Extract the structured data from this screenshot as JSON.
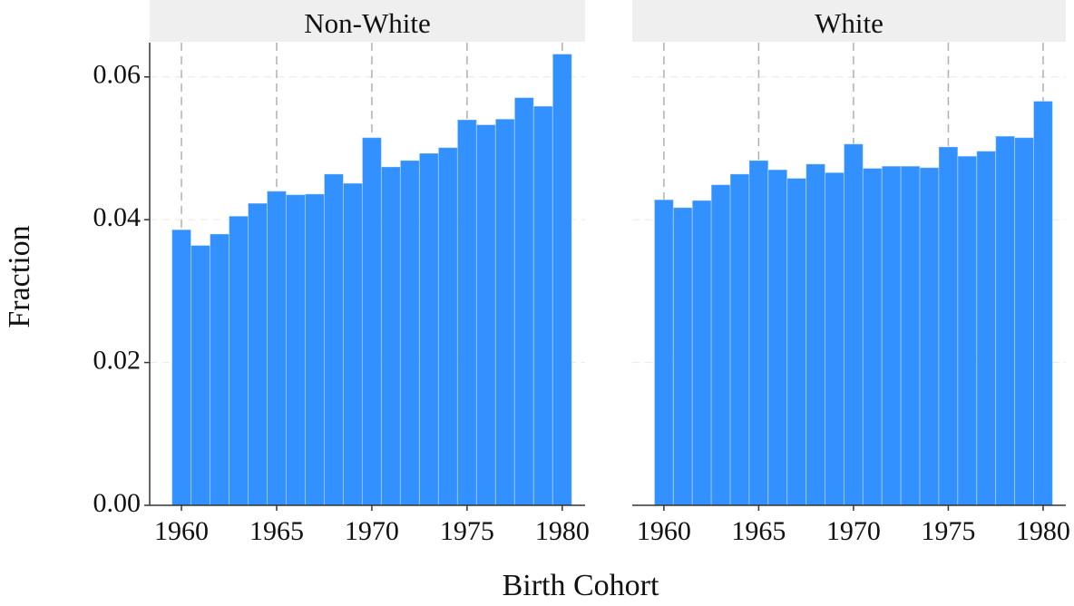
{
  "chart_data": {
    "type": "histogram",
    "xlabel": "Birth Cohort",
    "ylabel": "Fraction",
    "bins": [
      1959.5,
      1960.5,
      1961.5,
      1962.5,
      1963.5,
      1964.5,
      1965.5,
      1966.5,
      1967.5,
      1968.5,
      1969.5,
      1970.5,
      1971.5,
      1972.5,
      1973.5,
      1974.5,
      1975.5,
      1976.5,
      1977.5,
      1978.5,
      1979.5,
      1980.5
    ],
    "facets": [
      {
        "title": "Non-White",
        "values": [
          0.0386,
          0.0364,
          0.038,
          0.0405,
          0.0423,
          0.044,
          0.0435,
          0.0436,
          0.0464,
          0.0451,
          0.0515,
          0.0474,
          0.0483,
          0.0493,
          0.0501,
          0.054,
          0.0533,
          0.0541,
          0.0571,
          0.0559,
          0.0632
        ]
      },
      {
        "title": "White",
        "values": [
          0.0428,
          0.0417,
          0.0427,
          0.0449,
          0.0464,
          0.0483,
          0.047,
          0.0458,
          0.0478,
          0.0466,
          0.0506,
          0.0472,
          0.0475,
          0.0475,
          0.0473,
          0.0502,
          0.0489,
          0.0496,
          0.0517,
          0.0515,
          0.0566
        ]
      }
    ],
    "color": "#3391ff",
    "xlim": [
      1958.33,
      1981.2
    ],
    "xticks": [
      1960,
      1965,
      1970,
      1975,
      1980
    ],
    "ylim": [
      0,
      0.0648
    ],
    "yticks": [
      {
        "value": 0,
        "label": "0.00"
      },
      0.02,
      0.04,
      0.06
    ],
    "grid": true
  }
}
